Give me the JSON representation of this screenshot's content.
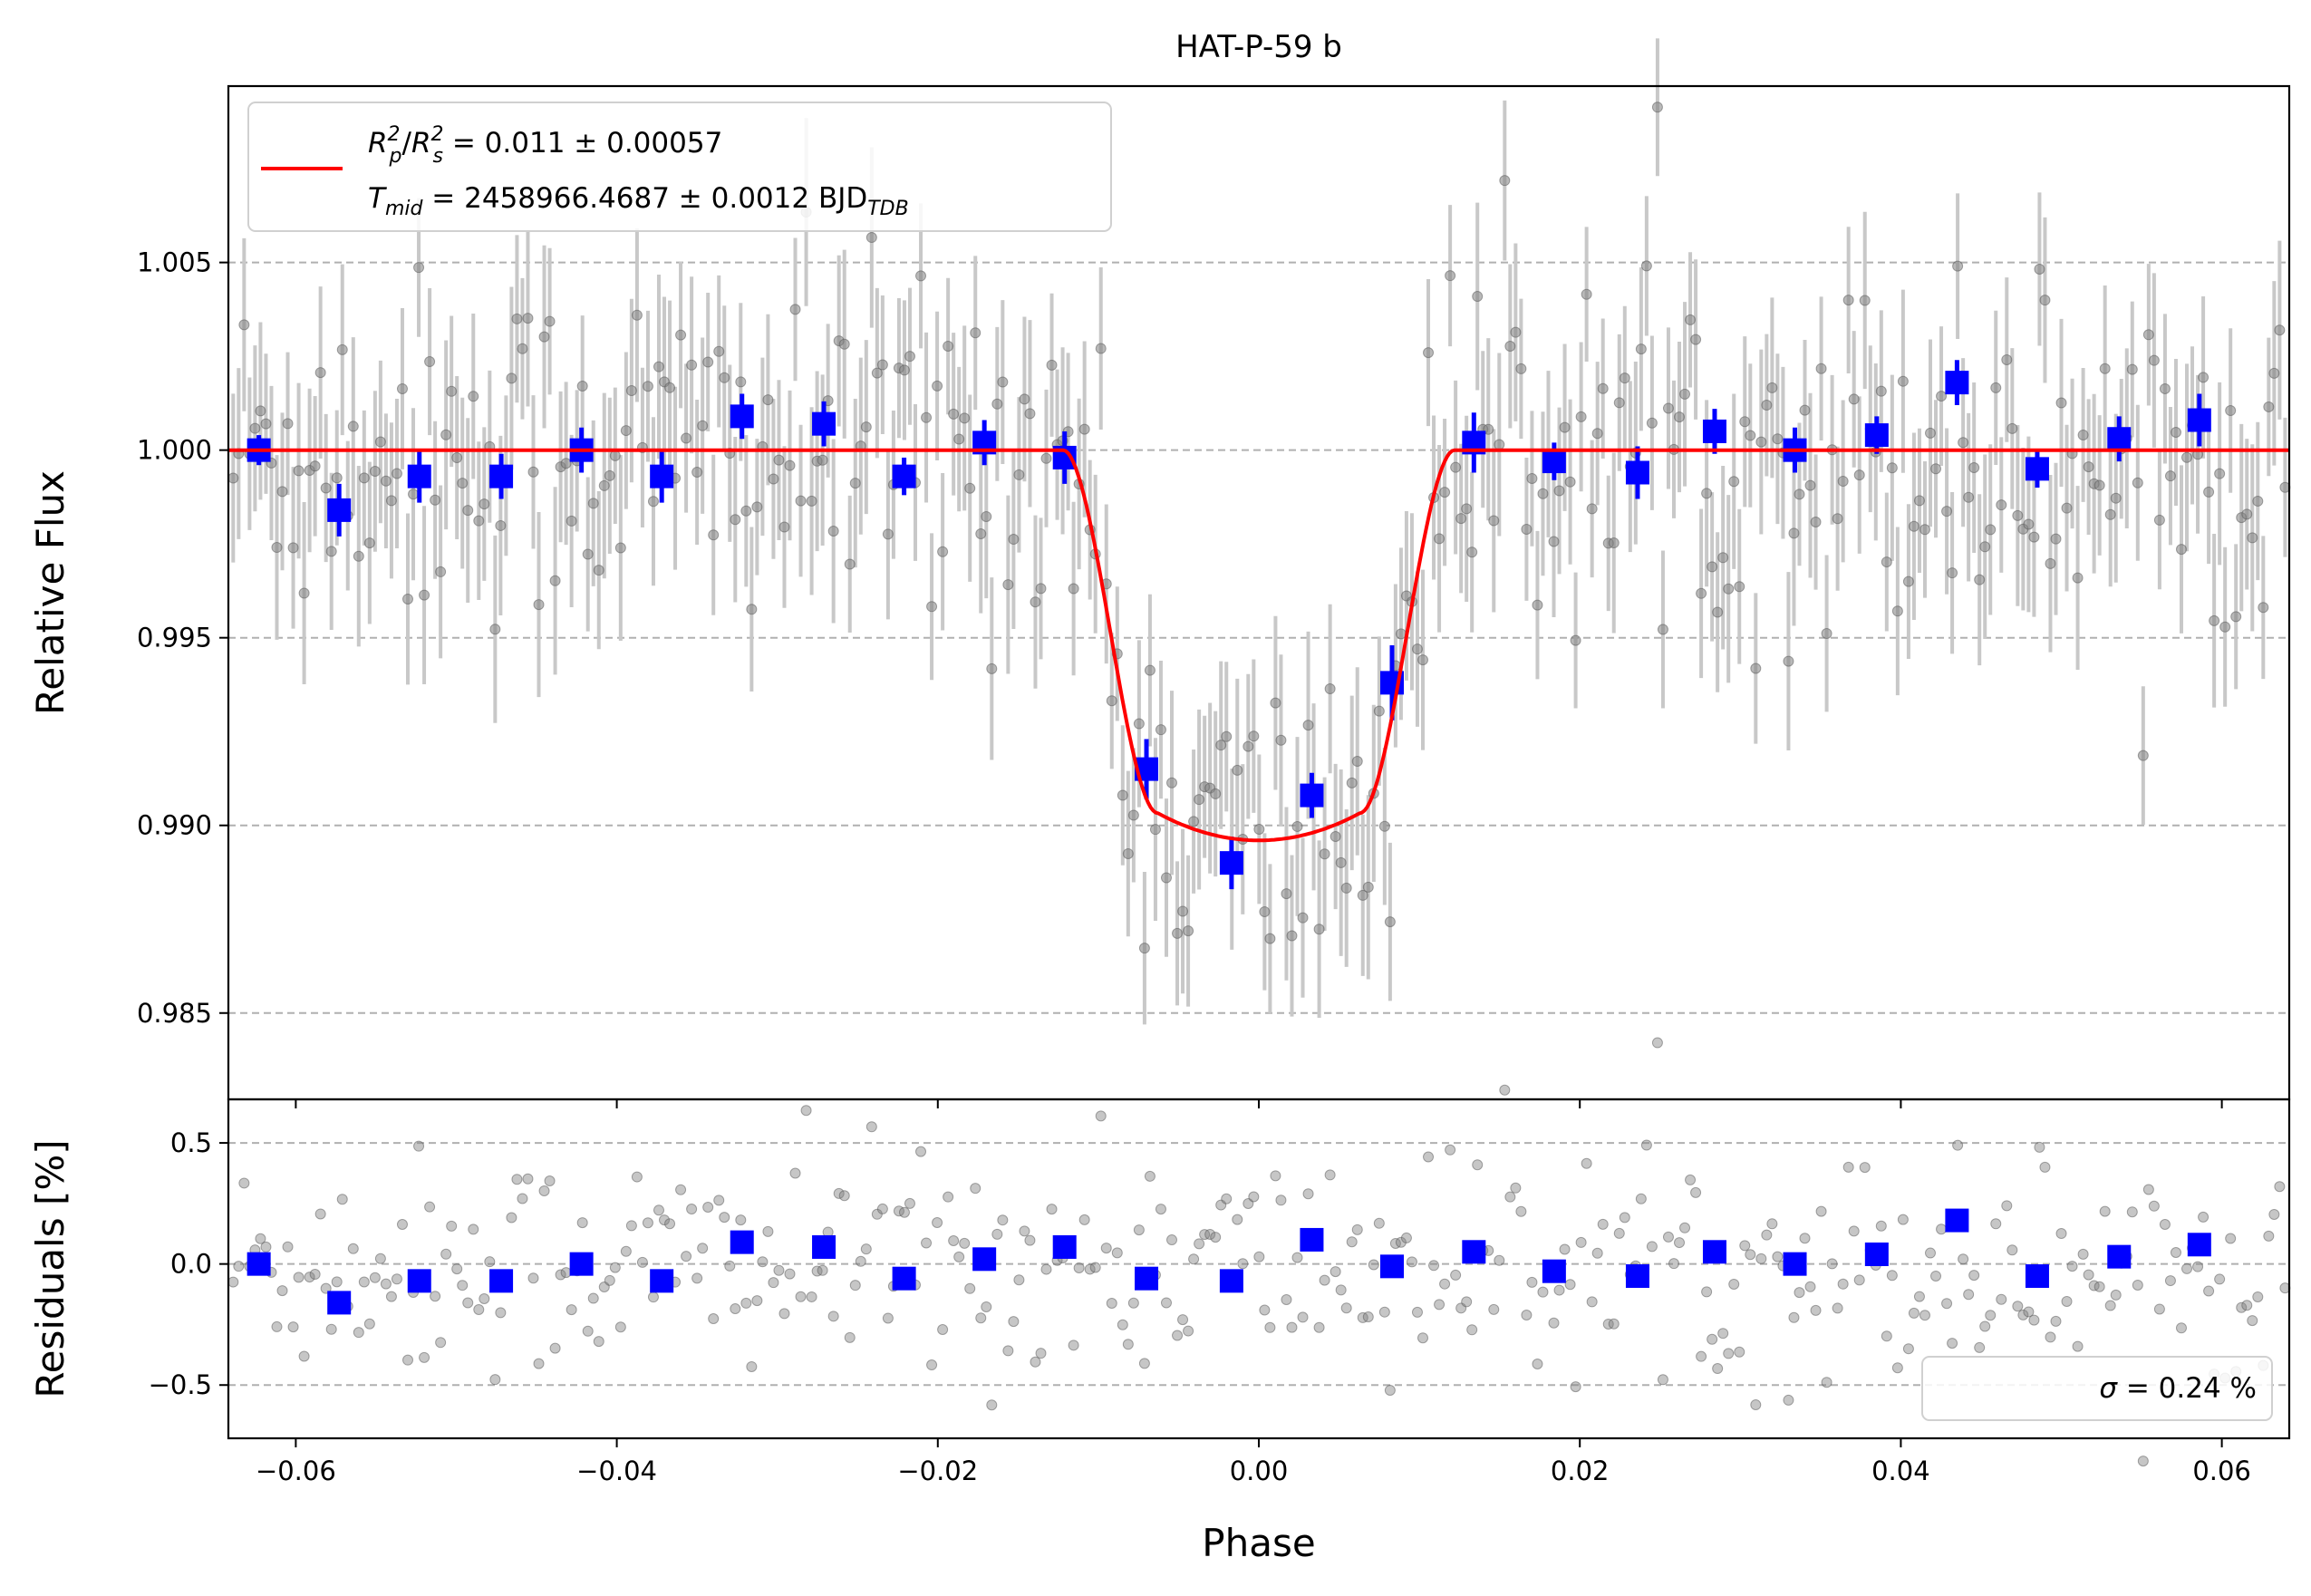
{
  "chart_data": {
    "type": "scatter",
    "title": "HAT-P-59 b",
    "xlabel": "Phase",
    "xlim": [
      -0.0642,
      0.0642
    ],
    "grid": "horizontal dashed",
    "colors": {
      "raw": "#808080",
      "errorbar": "#c8c8c8",
      "binned": "#0000ff",
      "model": "#ff0000"
    },
    "top_panel": {
      "ylabel": "Relative Flux",
      "ylim": [
        0.9827,
        1.0097
      ],
      "yticks": [
        0.985,
        0.99,
        0.995,
        1.0,
        1.005
      ],
      "ytick_labels": [
        "0.985",
        "0.990",
        "0.995",
        "1.000",
        "1.005"
      ],
      "legend": {
        "placement": "top-left",
        "line1_main": "R",
        "line1_p": "p",
        "line1_s": "s",
        "line1_sup": "2",
        "line1_value": " = 0.011 ± 0.00057",
        "line2_main": "T",
        "line2_sub": "mid",
        "line2_value": " = 2458966.4687 ± 0.0012 BJD",
        "line2_unit_sub": "TDB"
      },
      "model": {
        "depth": 0.0104,
        "t_ingress_start": 0.0122,
        "t_ingress_end": 0.0063,
        "limb_curvature": 0.07
      },
      "binned": [
        {
          "x": -0.0623,
          "y": 1.0,
          "e": 0.0004
        },
        {
          "x": -0.0573,
          "y": 0.9984,
          "e": 0.0007
        },
        {
          "x": -0.0523,
          "y": 0.9993,
          "e": 0.0007
        },
        {
          "x": -0.0472,
          "y": 0.9993,
          "e": 0.0006
        },
        {
          "x": -0.0422,
          "y": 1.0,
          "e": 0.0006
        },
        {
          "x": -0.0372,
          "y": 0.9993,
          "e": 0.0007
        },
        {
          "x": -0.0322,
          "y": 1.0009,
          "e": 0.0006
        },
        {
          "x": -0.0271,
          "y": 1.0007,
          "e": 0.0006
        },
        {
          "x": -0.0221,
          "y": 0.9993,
          "e": 0.0005
        },
        {
          "x": -0.0171,
          "y": 1.0002,
          "e": 0.0006
        },
        {
          "x": -0.0121,
          "y": 0.9998,
          "e": 0.0007
        },
        {
          "x": -0.007,
          "y": 0.9915,
          "e": 0.0008
        },
        {
          "x": -0.0017,
          "y": 0.989,
          "e": 0.0007
        },
        {
          "x": 0.0033,
          "y": 0.9908,
          "e": 0.0006
        },
        {
          "x": 0.0083,
          "y": 0.9938,
          "e": 0.001
        },
        {
          "x": 0.0134,
          "y": 1.0002,
          "e": 0.0008
        },
        {
          "x": 0.0184,
          "y": 0.9997,
          "e": 0.0005
        },
        {
          "x": 0.0236,
          "y": 0.9994,
          "e": 0.0007
        },
        {
          "x": 0.0284,
          "y": 1.0005,
          "e": 0.0006
        },
        {
          "x": 0.0334,
          "y": 1.0,
          "e": 0.0006
        },
        {
          "x": 0.0385,
          "y": 1.0004,
          "e": 0.0005
        },
        {
          "x": 0.0435,
          "y": 1.0018,
          "e": 0.0006
        },
        {
          "x": 0.0485,
          "y": 0.9995,
          "e": 0.0005
        },
        {
          "x": 0.0536,
          "y": 1.0003,
          "e": 0.0006
        },
        {
          "x": 0.0586,
          "y": 1.0008,
          "e": 0.0007
        }
      ]
    },
    "bottom_panel": {
      "ylabel": "Residuals [%]",
      "ylim": [
        -0.72,
        0.68
      ],
      "yticks": [
        -0.5,
        0.0,
        0.5
      ],
      "ytick_labels": [
        "−0.5",
        "0.0",
        "0.5"
      ],
      "legend": {
        "placement": "bottom-right",
        "sigma_symbol": "σ",
        "sigma_value": " = 0.24 %"
      },
      "binned": [
        {
          "x": -0.0623,
          "y": 0.0
        },
        {
          "x": -0.0573,
          "y": -0.16
        },
        {
          "x": -0.0523,
          "y": -0.07
        },
        {
          "x": -0.0472,
          "y": -0.07
        },
        {
          "x": -0.0422,
          "y": 0.0
        },
        {
          "x": -0.0372,
          "y": -0.07
        },
        {
          "x": -0.0322,
          "y": 0.09
        },
        {
          "x": -0.0271,
          "y": 0.07
        },
        {
          "x": -0.0221,
          "y": -0.06
        },
        {
          "x": -0.0171,
          "y": 0.02
        },
        {
          "x": -0.0121,
          "y": 0.07
        },
        {
          "x": -0.007,
          "y": -0.06
        },
        {
          "x": -0.0017,
          "y": -0.07
        },
        {
          "x": 0.0033,
          "y": 0.1
        },
        {
          "x": 0.0083,
          "y": -0.01
        },
        {
          "x": 0.0134,
          "y": 0.05
        },
        {
          "x": 0.0184,
          "y": -0.03
        },
        {
          "x": 0.0236,
          "y": -0.05
        },
        {
          "x": 0.0284,
          "y": 0.05
        },
        {
          "x": 0.0334,
          "y": 0.0
        },
        {
          "x": 0.0385,
          "y": 0.04
        },
        {
          "x": 0.0435,
          "y": 0.18
        },
        {
          "x": 0.0485,
          "y": -0.05
        },
        {
          "x": 0.0536,
          "y": 0.03
        },
        {
          "x": 0.0586,
          "y": 0.08
        }
      ]
    },
    "xticks": [
      -0.06,
      -0.04,
      -0.02,
      0.0,
      0.02,
      0.04,
      0.06
    ],
    "xtick_labels": [
      "−0.06",
      "−0.04",
      "−0.02",
      "0.00",
      "0.02",
      "0.04",
      "0.06"
    ],
    "raw_points": {
      "n": 380,
      "x_step": 0.00034,
      "y_scatter_sigma": 0.0024,
      "y_errorbar": 0.0021
    }
  }
}
